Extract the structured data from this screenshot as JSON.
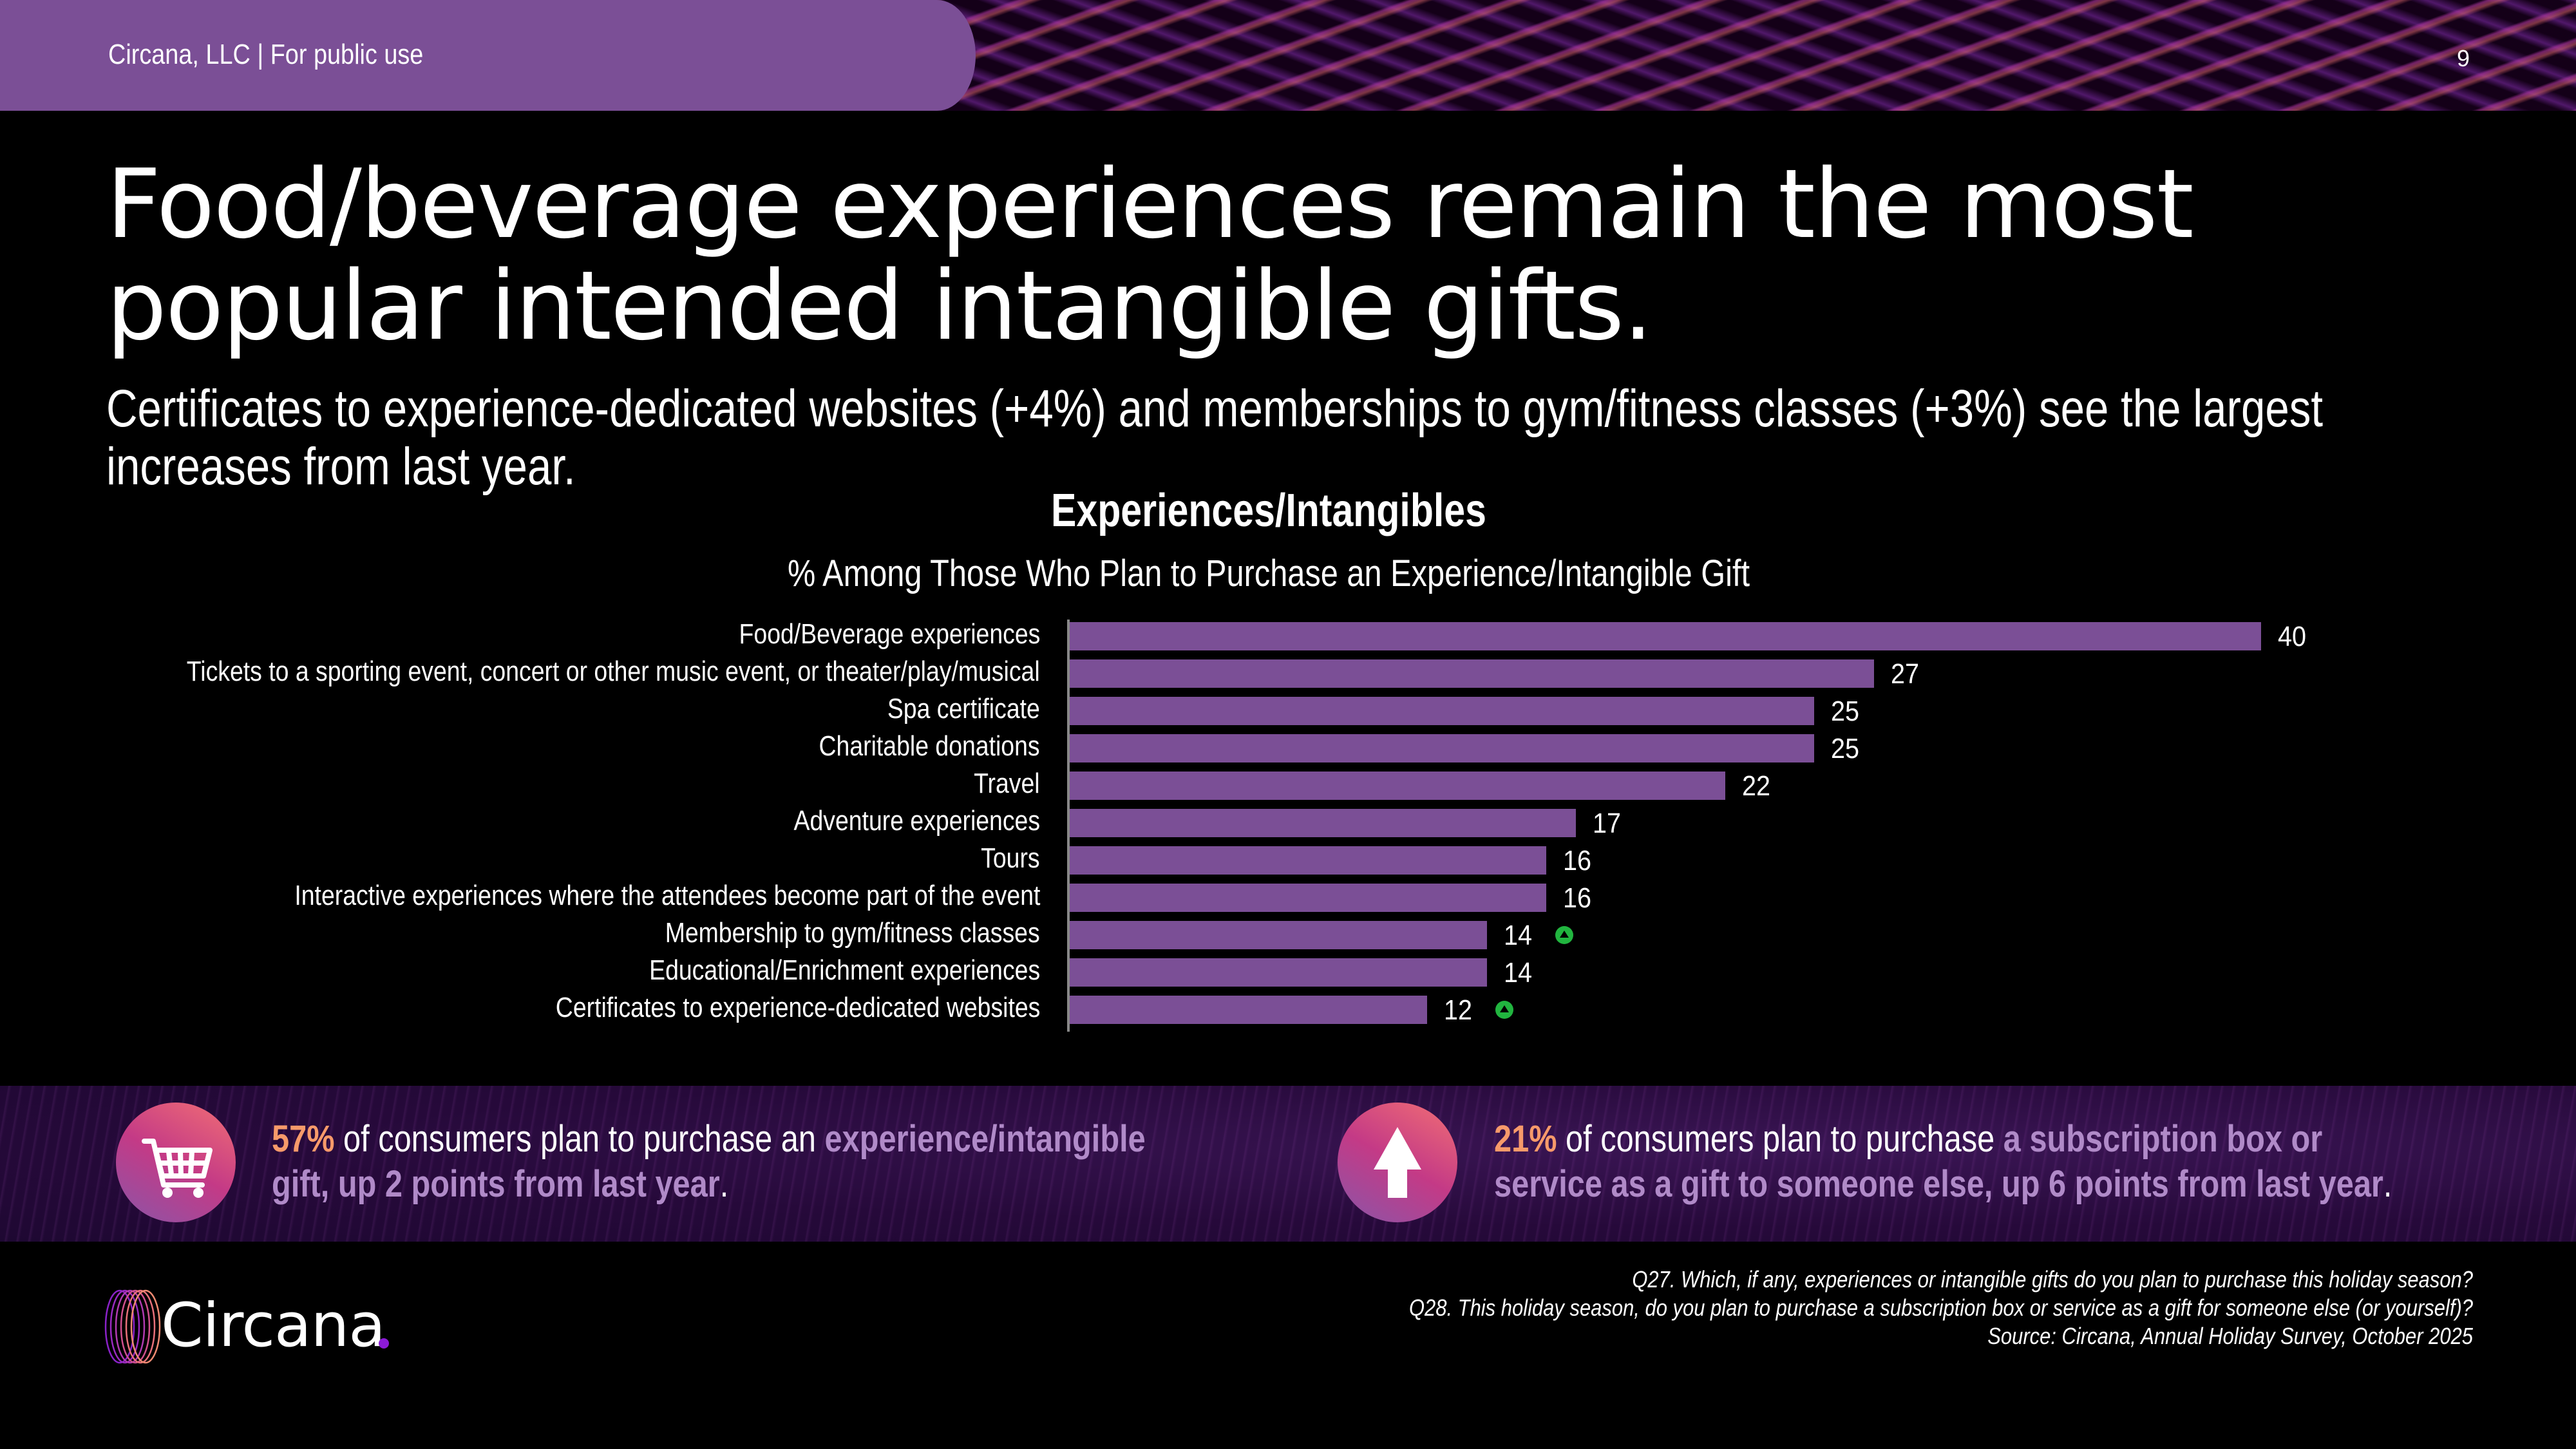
{
  "header": {
    "company_label": "Circana, LLC |  For public use",
    "page_number": "9"
  },
  "title": "Food/beverage experiences remain the most popular intended intangible gifts.",
  "subtitle": "Certificates to experience-dedicated websites (+4%) and memberships to gym/fitness classes (+3%) see the largest increases from last year.",
  "chart_data": {
    "type": "bar",
    "orientation": "horizontal",
    "title": "Experiences/Intangibles",
    "subtitle": "% Among Those Who Plan to Purchase an Experience/Intangible Gift",
    "xlabel": "",
    "ylabel": "",
    "xlim": [
      0,
      40
    ],
    "grid": false,
    "categories": [
      "Food/Beverage experiences",
      "Tickets to a sporting event, concert or other music event, or theater/play/musical",
      "Spa certificate",
      "Charitable donations",
      "Travel",
      "Adventure experiences",
      "Tours",
      "Interactive experiences where the attendees become part of the event",
      "Membership to gym/fitness classes",
      "Educational/Enrichment experiences",
      "Certificates to experience-dedicated websites"
    ],
    "values": [
      40,
      27,
      25,
      25,
      22,
      17,
      16,
      16,
      14,
      14,
      12
    ],
    "increase_flags": [
      false,
      false,
      false,
      false,
      false,
      false,
      false,
      false,
      true,
      false,
      true
    ],
    "bar_color": "#7b4f96",
    "increase_icon_color": "#21b53f"
  },
  "callouts": [
    {
      "icon": "shopping-cart-icon",
      "number": "57%",
      "plain": " of consumers plan to purchase an ",
      "highlight": "experience/intangible gift, up 2 points from last year",
      "end": "."
    },
    {
      "icon": "arrow-up-icon",
      "number": "21%",
      "plain": " of consumers plan to purchase ",
      "highlight": "a subscription box or service as a gift to someone else, up 6 points from last year",
      "end": "."
    }
  ],
  "footnotes": {
    "q27": "Q27. Which, if any, experiences or intangible gifts do you plan to purchase this holiday season?",
    "q28": "Q28. This holiday season, do you plan to purchase a subscription box or service as a gift for someone else (or yourself)?",
    "source": "Source: Circana, Annual Holiday Survey, October 2025"
  },
  "logo": {
    "text": "Circana"
  },
  "colors": {
    "accent_purple": "#7b4f96",
    "highlight_orange": "#f79a6a",
    "highlight_lavender": "#b08ac8",
    "increase_green": "#21b53f"
  }
}
